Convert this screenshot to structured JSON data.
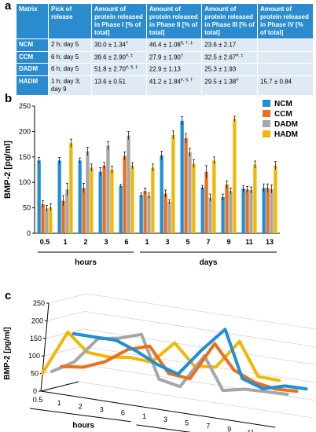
{
  "panels": {
    "a": "a",
    "b": "b",
    "c": "c"
  },
  "table": {
    "headers": [
      "Matrix",
      "Pick of release",
      "Amount of protein released in Phase I [% of total]",
      "Amount of protein released in Phase II [% of total]",
      "Amount of protein released in Phase III [% of total]",
      "Amount of protein released in Phase IV [% of total]"
    ],
    "rows": [
      {
        "matrix": "NCM",
        "pick": "2 h; day 5",
        "p1": "30.0 ± 1.34",
        "p1s": "†",
        "p2": "46.4 ± 1.08",
        "p2s": "§, †, ‡",
        "p3": "23.6 ± 2.17",
        "p3s": "",
        "p4": "",
        "p4s": ""
      },
      {
        "matrix": "CCM",
        "pick": "6 h; day 5",
        "p1": "39.6 ± 2.90",
        "p1s": "#, ‡",
        "p2": "27.9 ± 1.90",
        "p2s": "†",
        "p3": "32.5 ± 2.67",
        "p3s": "#, ‡",
        "p4": "",
        "p4s": ""
      },
      {
        "matrix": "DADM",
        "pick": "6 h; day 5",
        "p1": "51.8 ± 2.70",
        "p1s": "#, §, ‡",
        "p2": "22.9 ± 1.13",
        "p2s": "",
        "p3": "25.3 ± 1.93",
        "p3s": "",
        "p4": "",
        "p4s": ""
      },
      {
        "matrix": "HADM",
        "pick": "1 h; day 3; day 9",
        "p1": "13.6 ± 0.51",
        "p1s": "",
        "p2": "41.2 ± 1.84",
        "p2s": "#, §, †",
        "p3": "29.5 ± 1.38",
        "p3s": "#",
        "p4": "15.7 ± 0.84",
        "p4s": ""
      }
    ]
  },
  "chart_data": [
    {
      "type": "bar",
      "ylabel": "BMP-2 [pg/ml]",
      "ylim": [
        0,
        250
      ],
      "yticks": [
        0,
        50,
        100,
        150,
        200,
        250
      ],
      "categories": [
        "0.5",
        "1",
        "2",
        "3",
        "6",
        "1",
        "3",
        "5",
        "7",
        "9",
        "11",
        "13"
      ],
      "groups": [
        {
          "label": "hours",
          "from": 0,
          "to": 4
        },
        {
          "label": "days",
          "from": 5,
          "to": 11
        }
      ],
      "legend_position": "top-right",
      "series": [
        {
          "name": "NCM",
          "color": "#1f8fd6",
          "values": [
            143,
            143,
            143,
            121,
            93,
            75,
            153,
            221,
            90,
            71,
            88,
            89
          ],
          "errors": [
            6,
            6,
            5,
            8,
            3,
            4,
            8,
            8,
            4,
            6,
            6,
            8
          ]
        },
        {
          "name": "CCM",
          "color": "#e8701f",
          "values": [
            57,
            64,
            89,
            133,
            152,
            83,
            78,
            187,
            121,
            96,
            86,
            89
          ],
          "errors": [
            7,
            10,
            9,
            6,
            8,
            6,
            7,
            9,
            12,
            7,
            6,
            8
          ]
        },
        {
          "name": "DADM",
          "color": "#a6a6a6",
          "values": [
            49,
            86,
            161,
            172,
            192,
            74,
            62,
            159,
            70,
            83,
            85,
            87
          ],
          "errors": [
            6,
            12,
            8,
            8,
            8,
            5,
            4,
            8,
            7,
            6,
            6,
            8
          ]
        },
        {
          "name": "HADM",
          "color": "#f2b705",
          "values": [
            51,
            177,
            129,
            125,
            133,
            129,
            193,
            137,
            143,
            225,
            135,
            133
          ],
          "errors": [
            7,
            8,
            7,
            7,
            6,
            7,
            8,
            8,
            7,
            5,
            7,
            8
          ]
        }
      ]
    },
    {
      "type": "line",
      "ylabel": "BMP-2 [pg/ml]",
      "ylim": [
        0,
        250
      ],
      "yticks": [
        0,
        50,
        100,
        150,
        200,
        250
      ],
      "categories": [
        "0.5",
        "1",
        "2",
        "3",
        "6",
        "1",
        "3",
        "5",
        "7",
        "9",
        "11",
        "13"
      ],
      "groups": [
        {
          "label": "hours",
          "from": 0,
          "to": 4
        },
        {
          "label": "days",
          "from": 5,
          "to": 11
        }
      ],
      "series": [
        {
          "name": "NCM",
          "color": "#1f8fd6",
          "values": [
            143,
            143,
            143,
            121,
            93,
            75,
            153,
            221,
            90,
            71,
            88,
            89
          ]
        },
        {
          "name": "CCM",
          "color": "#e8701f",
          "values": [
            57,
            64,
            89,
            133,
            152,
            83,
            78,
            187,
            121,
            96,
            86,
            89
          ]
        },
        {
          "name": "DADM",
          "color": "#a6a6a6",
          "values": [
            49,
            86,
            161,
            172,
            192,
            74,
            62,
            159,
            70,
            83,
            85,
            87
          ]
        },
        {
          "name": "HADM",
          "color": "#f2b705",
          "values": [
            51,
            177,
            129,
            125,
            133,
            129,
            193,
            137,
            143,
            225,
            135,
            133
          ]
        }
      ]
    }
  ]
}
